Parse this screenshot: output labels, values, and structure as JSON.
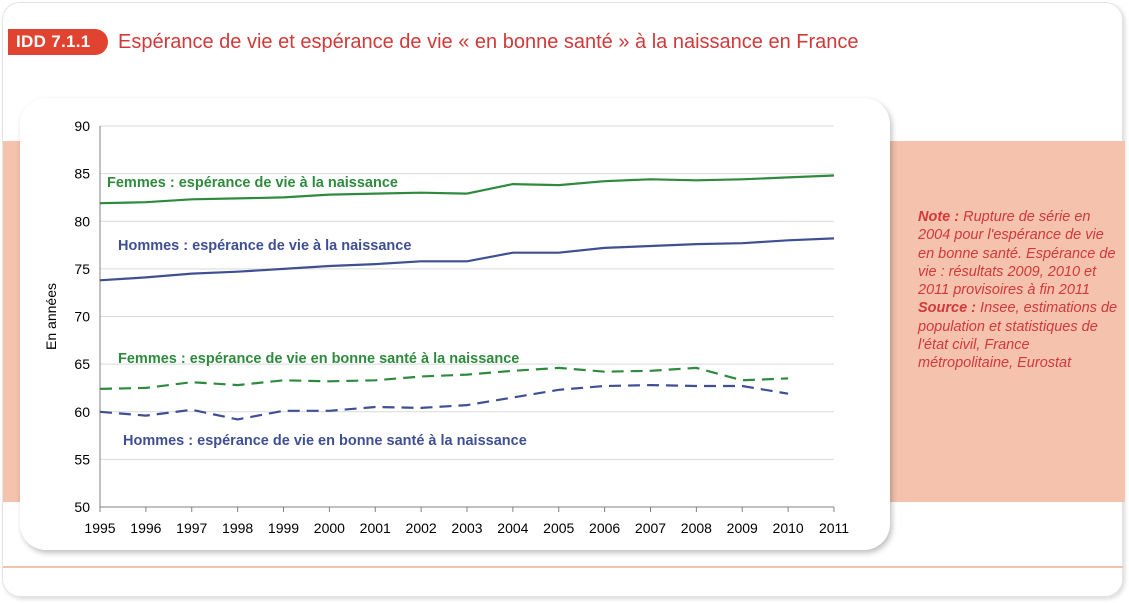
{
  "header": {
    "badge": "IDD 7.1.1",
    "title": "Espérance de vie et espérance de vie « en bonne santé » à la naissance en France"
  },
  "note": {
    "note_label": "Note :",
    "note_text": "Rupture de série en 2004 pour l'espérance de vie en bonne santé. Espérance de vie : résultats 2009, 2010 et 2011 provisoires à fin 2011",
    "source_label": "Source :",
    "source_text": "Insee, estimations de population et statistiques de l'état civil, France métropolitaine, Eurostat"
  },
  "colors": {
    "green": "#2e8b3e",
    "blue": "#3f4f93",
    "accent_red": "#d1393a",
    "band": "#f4c2ad"
  },
  "chart_data": {
    "type": "line",
    "ylabel": "En années",
    "xlabel": "",
    "ylim": [
      50,
      90
    ],
    "yticks": [
      50,
      55,
      60,
      65,
      70,
      75,
      80,
      85,
      90
    ],
    "x": [
      1995,
      1996,
      1997,
      1998,
      1999,
      2000,
      2001,
      2002,
      2003,
      2004,
      2005,
      2006,
      2007,
      2008,
      2009,
      2010,
      2011
    ],
    "grid": true,
    "series": [
      {
        "name": "Femmes : espérance de vie à la naissance",
        "color": "#2e8b3e",
        "dash": false,
        "values": [
          81.9,
          82.0,
          82.3,
          82.4,
          82.5,
          82.8,
          82.9,
          83.0,
          82.9,
          83.9,
          83.8,
          84.2,
          84.4,
          84.3,
          84.4,
          84.6,
          84.8
        ]
      },
      {
        "name": "Hommes : espérance de vie à la naissance",
        "color": "#3f4f93",
        "dash": false,
        "values": [
          73.8,
          74.1,
          74.5,
          74.7,
          75.0,
          75.3,
          75.5,
          75.8,
          75.8,
          76.7,
          76.7,
          77.2,
          77.4,
          77.6,
          77.7,
          78.0,
          78.2
        ]
      },
      {
        "name": "Femmes : espérance de vie en bonne santé à la naissance",
        "color": "#2e8b3e",
        "dash": true,
        "values": [
          62.4,
          62.5,
          63.1,
          62.8,
          63.3,
          63.2,
          63.3,
          63.7,
          63.9,
          64.3,
          64.6,
          64.2,
          64.3,
          64.6,
          63.3,
          63.5,
          null
        ]
      },
      {
        "name": "Hommes : espérance de vie en bonne santé à la naissance",
        "color": "#3f4f93",
        "dash": true,
        "values": [
          60.0,
          59.6,
          60.2,
          59.2,
          60.1,
          60.1,
          60.5,
          60.4,
          60.7,
          61.5,
          62.3,
          62.7,
          62.8,
          62.7,
          62.7,
          61.9,
          null
        ]
      }
    ]
  }
}
